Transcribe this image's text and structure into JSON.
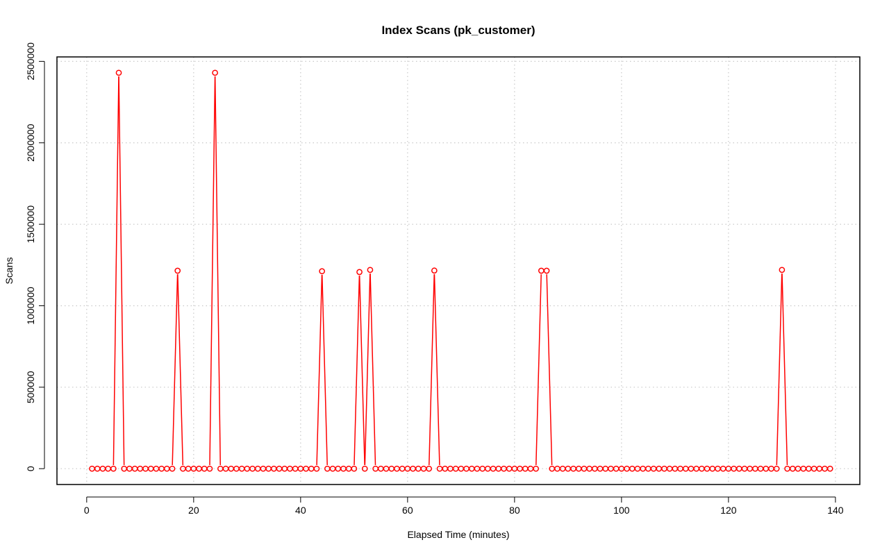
{
  "chart_data": {
    "type": "line",
    "title": "Index Scans (pk_customer)",
    "xlabel": "Elapsed Time (minutes)",
    "ylabel": "Scans",
    "xlim": [
      -5.56,
      144.56
    ],
    "ylim": [
      -97200,
      2527200
    ],
    "x_ticks": [
      0,
      20,
      40,
      60,
      80,
      100,
      120,
      140
    ],
    "x_tick_labels": [
      "0",
      "20",
      "40",
      "60",
      "80",
      "100",
      "120",
      "140"
    ],
    "y_ticks": [
      0,
      500000,
      1000000,
      1500000,
      2000000,
      2500000
    ],
    "y_tick_labels": [
      "0",
      "500000",
      "1000000",
      "1500000",
      "2000000",
      "2500000"
    ],
    "grid": true,
    "line_color": "#ff0000",
    "marker": "open-circle",
    "x_start": 1,
    "x_end": 139,
    "baseline_value": 0,
    "spikes": [
      {
        "x": 6,
        "y": 2430000
      },
      {
        "x": 17,
        "y": 1215000
      },
      {
        "x": 24,
        "y": 2430000
      },
      {
        "x": 44,
        "y": 1212000
      },
      {
        "x": 51,
        "y": 1207000
      },
      {
        "x": 53,
        "y": 1220000
      },
      {
        "x": 65,
        "y": 1216000
      },
      {
        "x": 85,
        "y": 1215000
      },
      {
        "x": 86,
        "y": 1215000
      },
      {
        "x": 130,
        "y": 1220000
      }
    ]
  }
}
